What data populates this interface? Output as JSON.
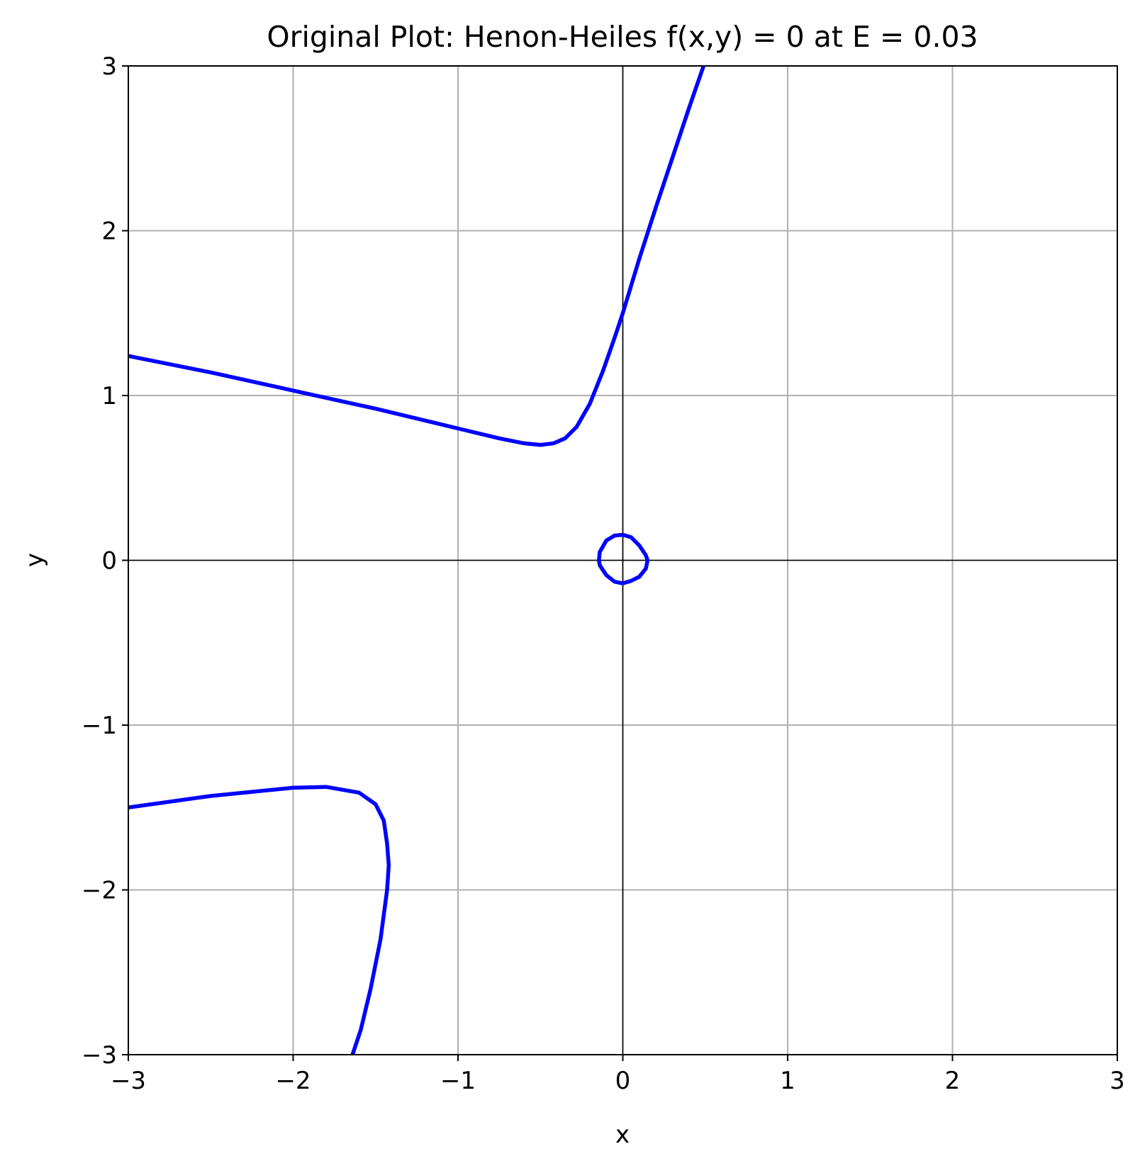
{
  "chart_data": {
    "type": "line",
    "title": "Original Plot: Henon-Heiles f(x,y) = 0 at E = 0.03",
    "xlabel": "x",
    "ylabel": "y",
    "xlim": [
      -3,
      3
    ],
    "ylim": [
      -3,
      3
    ],
    "xticks": [
      -3,
      -2,
      -1,
      0,
      1,
      2,
      3
    ],
    "yticks": [
      -3,
      -2,
      -1,
      0,
      1,
      2,
      3
    ],
    "xtick_labels": [
      "−3",
      "−2",
      "−1",
      "0",
      "1",
      "2",
      "3"
    ],
    "ytick_labels": [
      "−3",
      "−2",
      "−1",
      "0",
      "1",
      "2",
      "3"
    ],
    "grid": true,
    "zero_lines": true,
    "line_color": "#0000ff",
    "series": [
      {
        "points": [
          [
            -3.0,
            1.24
          ],
          [
            -2.5,
            1.14
          ],
          [
            -2.0,
            1.03
          ],
          [
            -1.5,
            0.92
          ],
          [
            -1.0,
            0.8
          ],
          [
            -0.75,
            0.74
          ],
          [
            -0.6,
            0.71
          ],
          [
            -0.5,
            0.7
          ],
          [
            -0.42,
            0.71
          ],
          [
            -0.35,
            0.74
          ],
          [
            -0.28,
            0.81
          ],
          [
            -0.2,
            0.95
          ],
          [
            -0.12,
            1.15
          ],
          [
            -0.05,
            1.35
          ],
          [
            0.0,
            1.5
          ],
          [
            0.1,
            1.83
          ],
          [
            0.2,
            2.14
          ],
          [
            0.3,
            2.44
          ],
          [
            0.4,
            2.74
          ],
          [
            0.49,
            3.0
          ]
        ]
      },
      {
        "points": [
          [
            -3.0,
            -1.5
          ],
          [
            -2.5,
            -1.43
          ],
          [
            -2.0,
            -1.38
          ],
          [
            -1.8,
            -1.375
          ],
          [
            -1.6,
            -1.41
          ],
          [
            -1.5,
            -1.48
          ],
          [
            -1.45,
            -1.58
          ],
          [
            -1.43,
            -1.72
          ],
          [
            -1.42,
            -1.85
          ],
          [
            -1.43,
            -2.0
          ],
          [
            -1.47,
            -2.3
          ],
          [
            -1.53,
            -2.6
          ],
          [
            -1.59,
            -2.85
          ],
          [
            -1.64,
            -3.0
          ]
        ]
      },
      {
        "points": [
          [
            0.0,
            0.155
          ],
          [
            0.05,
            0.14
          ],
          [
            0.1,
            0.09
          ],
          [
            0.14,
            0.03
          ],
          [
            0.15,
            0.0
          ],
          [
            0.14,
            -0.05
          ],
          [
            0.1,
            -0.1
          ],
          [
            0.05,
            -0.125
          ],
          [
            0.0,
            -0.14
          ],
          [
            -0.05,
            -0.13
          ],
          [
            -0.1,
            -0.09
          ],
          [
            -0.14,
            -0.03
          ],
          [
            -0.145,
            0.0
          ],
          [
            -0.14,
            0.05
          ],
          [
            -0.1,
            0.12
          ],
          [
            -0.05,
            0.15
          ],
          [
            0.0,
            0.155
          ]
        ]
      }
    ]
  }
}
